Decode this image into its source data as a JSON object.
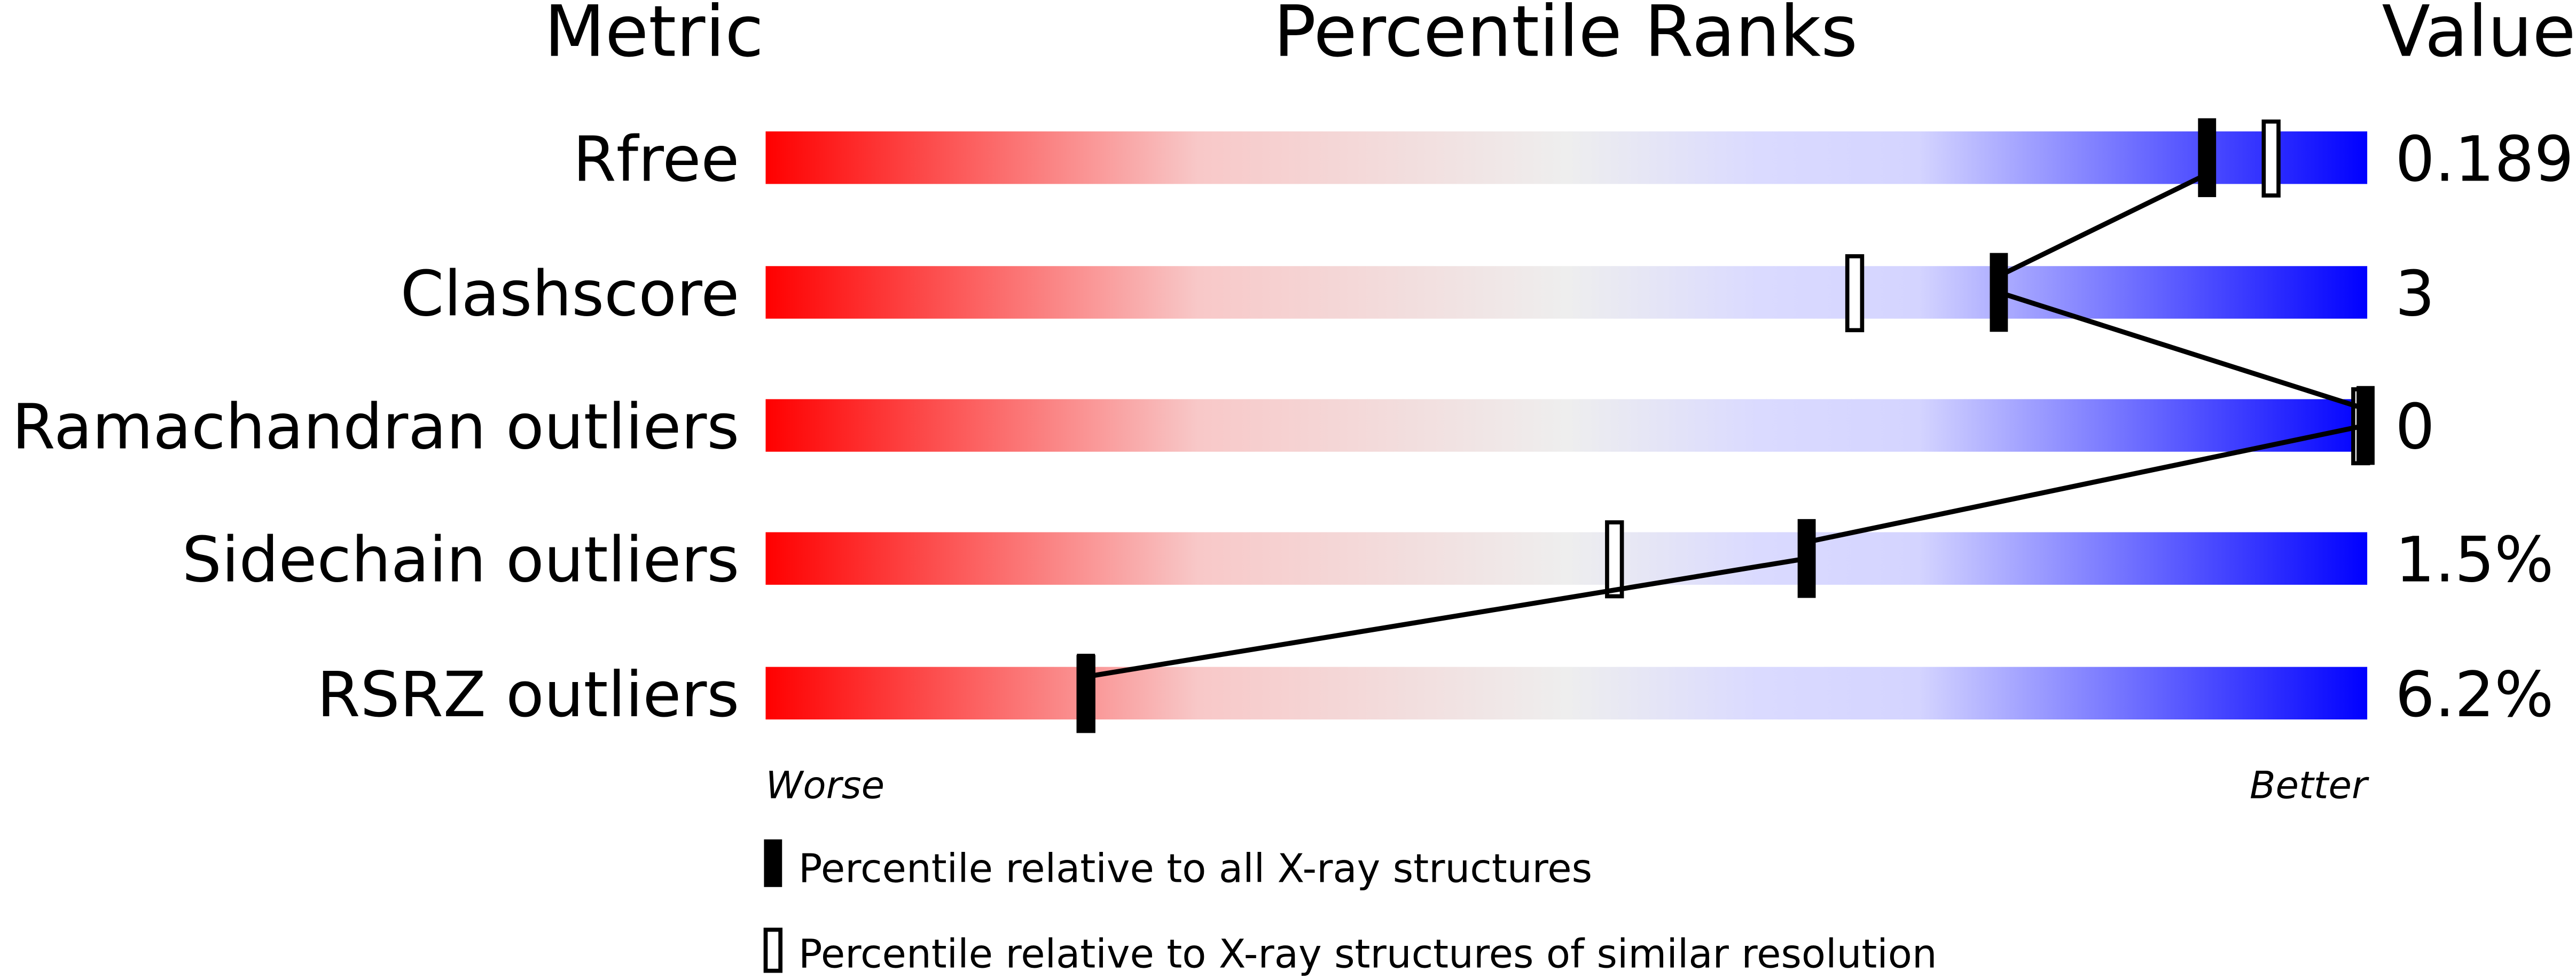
{
  "chart_data": {
    "type": "bar",
    "headers": {
      "metric": "Metric",
      "percentile": "Percentile Ranks",
      "value": "Value"
    },
    "xlim": [
      0,
      100
    ],
    "axis_labels": {
      "left": "Worse",
      "right": "Better"
    },
    "gradient_colors": [
      "#ff0000",
      "#eeeeee",
      "#d8d8ff",
      "#0000ff"
    ],
    "rows": [
      {
        "metric": "Rfree",
        "value": "0.189",
        "percentile_all": 90,
        "percentile_similar": 94
      },
      {
        "metric": "Clashscore",
        "value": "3",
        "percentile_all": 77,
        "percentile_similar": 68
      },
      {
        "metric": "Ramachandran outliers",
        "value": "0",
        "percentile_all": 100,
        "percentile_similar": 100
      },
      {
        "metric": "Sidechain outliers",
        "value": "1.5%",
        "percentile_all": 65,
        "percentile_similar": 53
      },
      {
        "metric": "RSRZ outliers",
        "value": "6.2%",
        "percentile_all": 20,
        "percentile_similar": 20
      }
    ],
    "legend": [
      {
        "marker": "filled",
        "label": "Percentile relative to all X-ray structures"
      },
      {
        "marker": "open",
        "label": "Percentile relative to X-ray structures of similar resolution"
      }
    ]
  }
}
